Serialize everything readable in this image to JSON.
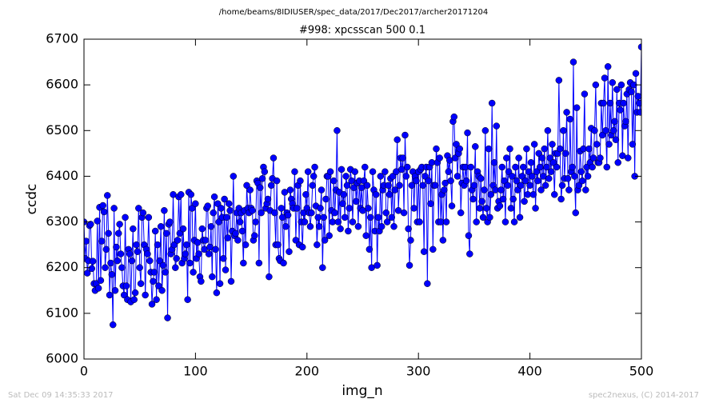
{
  "chart_data": {
    "type": "line",
    "subtitle": "/home/beams/8IDIUSER/spec_data/2017/Dec2017/archer20171204",
    "title": "#998: xpcsscan 500 0.1",
    "xlabel": "img_n",
    "ylabel": "ccdc",
    "footer_left": "Sat Dec 09 14:35:33 2017",
    "footer_right": "spec2nexus, (C) 2014-2017",
    "color": "#0000ff",
    "xlim": [
      0,
      500
    ],
    "xticks": [
      0,
      100,
      200,
      300,
      400,
      500
    ],
    "ylim": [
      6000,
      6700
    ],
    "yticks": [
      6000,
      6100,
      6200,
      6300,
      6400,
      6500,
      6600,
      6700
    ],
    "x": [
      0,
      1,
      2,
      3,
      4,
      5,
      6,
      7,
      8,
      9,
      10,
      11,
      12,
      13,
      14,
      15,
      16,
      17,
      18,
      19,
      20,
      21,
      22,
      23,
      24,
      25,
      26,
      27,
      28,
      29,
      30,
      31,
      32,
      33,
      34,
      35,
      36,
      37,
      38,
      39,
      40,
      41,
      42,
      43,
      44,
      45,
      46,
      47,
      48,
      49,
      50,
      51,
      52,
      53,
      54,
      55,
      56,
      57,
      58,
      59,
      60,
      61,
      62,
      63,
      64,
      65,
      66,
      67,
      68,
      69,
      70,
      71,
      72,
      73,
      74,
      75,
      76,
      77,
      78,
      79,
      80,
      81,
      82,
      83,
      84,
      85,
      86,
      87,
      88,
      89,
      90,
      91,
      92,
      93,
      94,
      95,
      96,
      97,
      98,
      99,
      100,
      101,
      102,
      103,
      104,
      105,
      106,
      107,
      108,
      109,
      110,
      111,
      112,
      113,
      114,
      115,
      116,
      117,
      118,
      119,
      120,
      121,
      122,
      123,
      124,
      125,
      126,
      127,
      128,
      129,
      130,
      131,
      132,
      133,
      134,
      135,
      136,
      137,
      138,
      139,
      140,
      141,
      142,
      143,
      144,
      145,
      146,
      147,
      148,
      149,
      150,
      151,
      152,
      153,
      154,
      155,
      156,
      157,
      158,
      159,
      160,
      161,
      162,
      163,
      164,
      165,
      166,
      167,
      168,
      169,
      170,
      171,
      172,
      173,
      174,
      175,
      176,
      177,
      178,
      179,
      180,
      181,
      182,
      183,
      184,
      185,
      186,
      187,
      188,
      189,
      190,
      191,
      192,
      193,
      194,
      195,
      196,
      197,
      198,
      199,
      200,
      201,
      202,
      203,
      204,
      205,
      206,
      207,
      208,
      209,
      210,
      211,
      212,
      213,
      214,
      215,
      216,
      217,
      218,
      219,
      220,
      221,
      222,
      223,
      224,
      225,
      226,
      227,
      228,
      229,
      230,
      231,
      232,
      233,
      234,
      235,
      236,
      237,
      238,
      239,
      240,
      241,
      242,
      243,
      244,
      245,
      246,
      247,
      248,
      249,
      250,
      251,
      252,
      253,
      254,
      255,
      256,
      257,
      258,
      259,
      260,
      261,
      262,
      263,
      264,
      265,
      266,
      267,
      268,
      269,
      270,
      271,
      272,
      273,
      274,
      275,
      276,
      277,
      278,
      279,
      280,
      281,
      282,
      283,
      284,
      285,
      286,
      287,
      288,
      289,
      290,
      291,
      292,
      293,
      294,
      295,
      296,
      297,
      298,
      299,
      300,
      301,
      302,
      303,
      304,
      305,
      306,
      307,
      308,
      309,
      310,
      311,
      312,
      313,
      314,
      315,
      316,
      317,
      318,
      319,
      320,
      321,
      322,
      323,
      324,
      325,
      326,
      327,
      328,
      329,
      330,
      331,
      332,
      333,
      334,
      335,
      336,
      337,
      338,
      339,
      340,
      341,
      342,
      343,
      344,
      345,
      346,
      347,
      348,
      349,
      350,
      351,
      352,
      353,
      354,
      355,
      356,
      357,
      358,
      359,
      360,
      361,
      362,
      363,
      364,
      365,
      366,
      367,
      368,
      369,
      370,
      371,
      372,
      373,
      374,
      375,
      376,
      377,
      378,
      379,
      380,
      381,
      382,
      383,
      384,
      385,
      386,
      387,
      388,
      389,
      390,
      391,
      392,
      393,
      394,
      395,
      396,
      397,
      398,
      399,
      400,
      401,
      402,
      403,
      404,
      405,
      406,
      407,
      408,
      409,
      410,
      411,
      412,
      413,
      414,
      415,
      416,
      417,
      418,
      419,
      420,
      421,
      422,
      423,
      424,
      425,
      426,
      427,
      428,
      429,
      430,
      431,
      432,
      433,
      434,
      435,
      436,
      437,
      438,
      439,
      440,
      441,
      442,
      443,
      444,
      445,
      446,
      447,
      448,
      449,
      450,
      451,
      452,
      453,
      454,
      455,
      456,
      457,
      458,
      459,
      460,
      461,
      462,
      463,
      464,
      465,
      466,
      467,
      468,
      469,
      470,
      471,
      472,
      473,
      474,
      475,
      476,
      477,
      478,
      479,
      480,
      481,
      482,
      483,
      484,
      485,
      486,
      487,
      488,
      489,
      490,
      491,
      492,
      493,
      494,
      495,
      496,
      497,
      498,
      499,
      500
    ],
    "values": [
      6300,
      6220,
      6258,
      6188,
      6215,
      6292,
      6295,
      6198,
      6214,
      6165,
      6150,
      6165,
      6302,
      6155,
      6332,
      6172,
      6258,
      6336,
      6322,
      6200,
      6240,
      6358,
      6275,
      6140,
      6210,
      6185,
      6075,
      6330,
      6150,
      6245,
      6215,
      6275,
      6295,
      6230,
      6200,
      6160,
      6140,
      6310,
      6160,
      6130,
      6240,
      6230,
      6125,
      6215,
      6285,
      6130,
      6145,
      6250,
      6235,
      6330,
      6200,
      6165,
      6310,
      6320,
      6250,
      6140,
      6240,
      6230,
      6310,
      6215,
      6190,
      6120,
      6170,
      6190,
      6280,
      6130,
      6250,
      6160,
      6215,
      6290,
      6150,
      6205,
      6325,
      6190,
      6275,
      6090,
      6295,
      6300,
      6230,
      6240,
      6360,
      6250,
      6200,
      6220,
      6260,
      6355,
      6275,
      6360,
      6210,
      6285,
      6220,
      6230,
      6250,
      6130,
      6365,
      6210,
      6360,
      6330,
      6190,
      6260,
      6340,
      6220,
      6255,
      6230,
      6180,
      6170,
      6285,
      6260,
      6240,
      6260,
      6330,
      6335,
      6230,
      6245,
      6290,
      6180,
      6320,
      6355,
      6240,
      6145,
      6340,
      6300,
      6165,
      6330,
      6310,
      6220,
      6350,
      6195,
      6310,
      6265,
      6340,
      6325,
      6170,
      6280,
      6400,
      6270,
      6275,
      6320,
      6260,
      6330,
      6300,
      6320,
      6280,
      6210,
      6325,
      6250,
      6380,
      6330,
      6320,
      6370,
      6330,
      6325,
      6260,
      6270,
      6300,
      6390,
      6385,
      6210,
      6375,
      6320,
      6395,
      6420,
      6410,
      6330,
      6340,
      6350,
      6180,
      6325,
      6380,
      6395,
      6440,
      6320,
      6250,
      6390,
      6250,
      6220,
      6215,
      6330,
      6310,
      6210,
      6365,
      6290,
      6320,
      6315,
      6235,
      6370,
      6350,
      6340,
      6330,
      6410,
      6260,
      6330,
      6380,
      6250,
      6390,
      6300,
      6245,
      6320,
      6300,
      6360,
      6330,
      6410,
      6320,
      6290,
      6320,
      6380,
      6400,
      6420,
      6335,
      6250,
      6310,
      6290,
      6330,
      6370,
      6200,
      6310,
      6260,
      6350,
      6400,
      6400,
      6270,
      6410,
      6325,
      6300,
      6390,
      6320,
      6370,
      6500,
      6300,
      6365,
      6285,
      6415,
      6340,
      6360,
      6310,
      6400,
      6380,
      6280,
      6330,
      6415,
      6390,
      6300,
      6375,
      6410,
      6345,
      6385,
      6290,
      6390,
      6330,
      6375,
      6325,
      6390,
      6420,
      6270,
      6380,
      6330,
      6240,
      6310,
      6200,
      6410,
      6370,
      6280,
      6360,
      6205,
      6310,
      6280,
      6400,
      6290,
      6370,
      6380,
      6410,
      6320,
      6300,
      6380,
      6360,
      6395,
      6310,
      6400,
      6290,
      6370,
      6410,
      6480,
      6325,
      6380,
      6440,
      6415,
      6440,
      6320,
      6490,
      6400,
      6420,
      6285,
      6205,
      6260,
      6380,
      6410,
      6330,
      6400,
      6390,
      6300,
      6410,
      6300,
      6415,
      6420,
      6380,
      6235,
      6400,
      6420,
      6165,
      6390,
      6420,
      6340,
      6430,
      6240,
      6380,
      6380,
      6460,
      6430,
      6300,
      6440,
      6300,
      6360,
      6260,
      6370,
      6385,
      6300,
      6445,
      6410,
      6435,
      6390,
      6335,
      6520,
      6530,
      6440,
      6470,
      6400,
      6450,
      6460,
      6320,
      6385,
      6420,
      6380,
      6420,
      6390,
      6495,
      6270,
      6230,
      6420,
      6370,
      6350,
      6380,
      6465,
      6300,
      6410,
      6400,
      6330,
      6395,
      6345,
      6310,
      6370,
      6500,
      6330,
      6300,
      6460,
      6310,
      6360,
      6560,
      6380,
      6430,
      6370,
      6510,
      6330,
      6345,
      6335,
      6370,
      6420,
      6350,
      6390,
      6300,
      6440,
      6380,
      6410,
      6460,
      6330,
      6400,
      6350,
      6300,
      6420,
      6390,
      6370,
      6440,
      6310,
      6380,
      6400,
      6420,
      6345,
      6390,
      6460,
      6360,
      6410,
      6380,
      6430,
      6400,
      6360,
      6470,
      6330,
      6410,
      6390,
      6450,
      6420,
      6370,
      6440,
      6400,
      6460,
      6380,
      6420,
      6500,
      6395,
      6440,
      6410,
      6470,
      6430,
      6360,
      6450,
      6420,
      6450,
      6610,
      6460,
      6350,
      6380,
      6500,
      6395,
      6450,
      6540,
      6395,
      6370,
      6525,
      6410,
      6420,
      6650,
      6400,
      6320,
      6550,
      6370,
      6380,
      6455,
      6410,
      6390,
      6460,
      6580,
      6370,
      6420,
      6400,
      6460,
      6430,
      6505,
      6420,
      6440,
      6500,
      6600,
      6470,
      6430,
      6430,
      6440,
      6560,
      6490,
      6560,
      6615,
      6500,
      6420,
      6640,
      6470,
      6560,
      6490,
      6605,
      6500,
      6520,
      6480,
      6590,
      6430,
      6560,
      6545,
      6600,
      6445,
      6560,
      6510,
      6520,
      6580,
      6440,
      6590,
      6605,
      6585,
      6470,
      6600,
      6400,
      6625,
      6540,
      6575,
      6560,
      6540,
      6683
    ]
  }
}
